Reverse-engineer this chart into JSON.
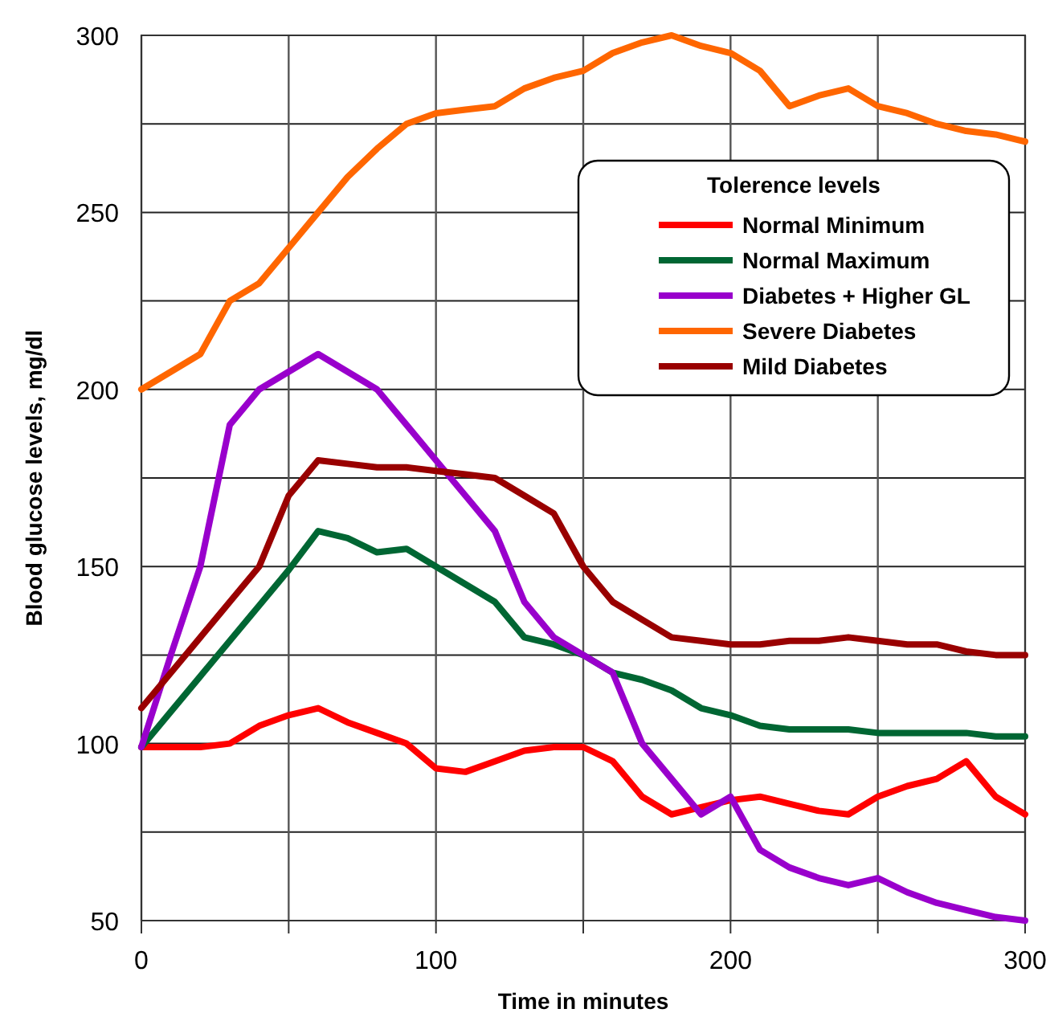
{
  "chart_data": {
    "type": "line",
    "xlabel": "Time in minutes",
    "ylabel": "Blood glucose levels, mg/dl",
    "legend_title": "Tolerence levels",
    "legend": "top right",
    "grid": true,
    "x": [
      0,
      10,
      20,
      30,
      40,
      50,
      60,
      70,
      80,
      90,
      100,
      110,
      120,
      130,
      140,
      150,
      160,
      170,
      180,
      190,
      200,
      210,
      220,
      230,
      240,
      250,
      260,
      270,
      280,
      290,
      300
    ],
    "xlim": [
      0,
      300
    ],
    "xticks": [
      0,
      {
        "value": 50,
        "label": null
      },
      100,
      {
        "value": 150,
        "label": null
      },
      200,
      {
        "value": 250,
        "label": null
      },
      300
    ],
    "ylim": [
      50,
      300
    ],
    "yticks": [
      50,
      {
        "value": 75,
        "label": null
      },
      100,
      {
        "value": 125,
        "label": null
      },
      150,
      {
        "value": 175,
        "label": null
      },
      200,
      {
        "value": 225,
        "label": null
      },
      250,
      {
        "value": 275,
        "label": null
      },
      300
    ],
    "series": [
      {
        "name": "Normal Minimum",
        "color": "#ff0000",
        "values": [
          99,
          99,
          99,
          100,
          105,
          108,
          110,
          106,
          103,
          100,
          93,
          92,
          95,
          98,
          99,
          99,
          95,
          85,
          80,
          82,
          84,
          85,
          83,
          81,
          80,
          85,
          88,
          90,
          95,
          85,
          80
        ]
      },
      {
        "name": "Normal Maximum",
        "color": "#006633",
        "values": [
          99,
          109,
          119,
          129,
          139,
          149,
          160,
          158,
          154,
          155,
          150,
          145,
          140,
          130,
          128,
          125,
          120,
          118,
          115,
          110,
          108,
          105,
          104,
          104,
          104,
          103,
          103,
          103,
          103,
          102,
          102
        ]
      },
      {
        "name": "Diabetes + Higher GL",
        "color": "#9900cc",
        "values": [
          99,
          125,
          150,
          190,
          200,
          205,
          210,
          205,
          200,
          190,
          180,
          170,
          160,
          140,
          130,
          125,
          120,
          100,
          90,
          80,
          85,
          70,
          65,
          62,
          60,
          62,
          58,
          55,
          53,
          51,
          50
        ]
      },
      {
        "name": "Severe Diabetes",
        "color": "#ff6600",
        "values": [
          200,
          205,
          210,
          225,
          230,
          240,
          250,
          260,
          268,
          275,
          278,
          279,
          280,
          285,
          288,
          290,
          295,
          298,
          300,
          297,
          295,
          290,
          280,
          283,
          285,
          280,
          278,
          275,
          273,
          272,
          270
        ]
      },
      {
        "name": "Mild Diabetes",
        "color": "#990000",
        "values": [
          110,
          120,
          130,
          140,
          150,
          170,
          180,
          179,
          178,
          178,
          177,
          176,
          175,
          170,
          165,
          150,
          140,
          135,
          130,
          129,
          128,
          128,
          129,
          129,
          130,
          129,
          128,
          128,
          126,
          125,
          125
        ]
      }
    ]
  }
}
